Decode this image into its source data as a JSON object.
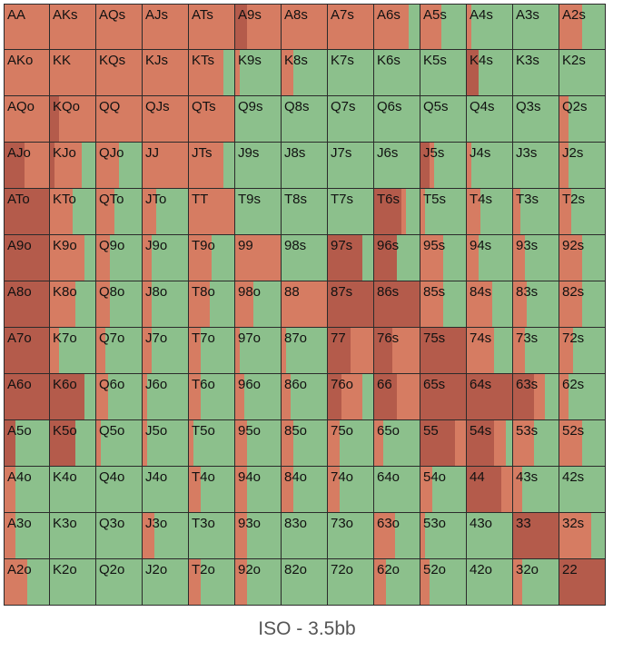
{
  "chart_data": {
    "type": "heatmap",
    "title": "ISO - 3.5bb",
    "colors": {
      "raise": "#d67c62",
      "allin": "#b45b4b",
      "fold": "#8cc08c",
      "grid_line": "#2b2b2b",
      "caption": "#555555"
    },
    "hands": [
      [
        "AA",
        "AKs",
        "AQs",
        "AJs",
        "ATs",
        "A9s",
        "A8s",
        "A7s",
        "A6s",
        "A5s",
        "A4s",
        "A3s",
        "A2s"
      ],
      [
        "AKo",
        "KK",
        "KQs",
        "KJs",
        "KTs",
        "K9s",
        "K8s",
        "K7s",
        "K6s",
        "K5s",
        "K4s",
        "K3s",
        "K2s"
      ],
      [
        "AQo",
        "KQo",
        "QQ",
        "QJs",
        "QTs",
        "Q9s",
        "Q8s",
        "Q7s",
        "Q6s",
        "Q5s",
        "Q4s",
        "Q3s",
        "Q2s"
      ],
      [
        "AJo",
        "KJo",
        "QJo",
        "JJ",
        "JTs",
        "J9s",
        "J8s",
        "J7s",
        "J6s",
        "J5s",
        "J4s",
        "J3s",
        "J2s"
      ],
      [
        "ATo",
        "KTo",
        "QTo",
        "JTo",
        "TT",
        "T9s",
        "T8s",
        "T7s",
        "T6s",
        "T5s",
        "T4s",
        "T3s",
        "T2s"
      ],
      [
        "A9o",
        "K9o",
        "Q9o",
        "J9o",
        "T9o",
        "99",
        "98s",
        "97s",
        "96s",
        "95s",
        "94s",
        "93s",
        "92s"
      ],
      [
        "A8o",
        "K8o",
        "Q8o",
        "J8o",
        "T8o",
        "98o",
        "88",
        "87s",
        "86s",
        "85s",
        "84s",
        "83s",
        "82s"
      ],
      [
        "A7o",
        "K7o",
        "Q7o",
        "J7o",
        "T7o",
        "97o",
        "87o",
        "77",
        "76s",
        "75s",
        "74s",
        "73s",
        "72s"
      ],
      [
        "A6o",
        "K6o",
        "Q6o",
        "J6o",
        "T6o",
        "96o",
        "86o",
        "76o",
        "66",
        "65s",
        "64s",
        "63s",
        "62s"
      ],
      [
        "A5o",
        "K5o",
        "Q5o",
        "J5o",
        "T5o",
        "95o",
        "85o",
        "75o",
        "65o",
        "55",
        "54s",
        "53s",
        "52s"
      ],
      [
        "A4o",
        "K4o",
        "Q4o",
        "J4o",
        "T4o",
        "94o",
        "84o",
        "74o",
        "64o",
        "54o",
        "44",
        "43s",
        "42s"
      ],
      [
        "A3o",
        "K3o",
        "Q3o",
        "J3o",
        "T3o",
        "93o",
        "83o",
        "73o",
        "63o",
        "53o",
        "43o",
        "33",
        "32s"
      ],
      [
        "A2o",
        "K2o",
        "Q2o",
        "J2o",
        "T2o",
        "92o",
        "82o",
        "72o",
        "62o",
        "52o",
        "42o",
        "32o",
        "22"
      ]
    ],
    "frequencies": [
      [
        [
          0,
          1
        ],
        [
          0,
          1
        ],
        [
          0,
          1
        ],
        [
          0,
          1
        ],
        [
          0,
          1
        ],
        [
          0.25,
          0.75
        ],
        [
          0,
          1
        ],
        [
          0,
          1
        ],
        [
          0,
          0.75
        ],
        [
          0,
          0.45
        ],
        [
          0,
          0.1
        ],
        [
          0,
          0
        ],
        [
          0,
          0.5
        ]
      ],
      [
        [
          0,
          1
        ],
        [
          0,
          1
        ],
        [
          0,
          1
        ],
        [
          0,
          1
        ],
        [
          0,
          0.75
        ],
        [
          0,
          0.1
        ],
        [
          0,
          0.25
        ],
        [
          0,
          0
        ],
        [
          0,
          0
        ],
        [
          0,
          0
        ],
        [
          0.25,
          0
        ],
        [
          0,
          0
        ],
        [
          0,
          0
        ]
      ],
      [
        [
          0,
          1
        ],
        [
          0.2,
          0.8
        ],
        [
          0,
          1
        ],
        [
          0,
          1
        ],
        [
          0,
          1
        ],
        [
          0,
          0
        ],
        [
          0,
          0
        ],
        [
          0,
          0
        ],
        [
          0,
          0
        ],
        [
          0,
          0
        ],
        [
          0,
          0
        ],
        [
          0,
          0
        ],
        [
          0,
          0.2
        ]
      ],
      [
        [
          0.45,
          0.55
        ],
        [
          0.1,
          0.6
        ],
        [
          0,
          0.5
        ],
        [
          0,
          1
        ],
        [
          0,
          0.75
        ],
        [
          0,
          0
        ],
        [
          0,
          0
        ],
        [
          0,
          0
        ],
        [
          0,
          0
        ],
        [
          0.2,
          0.1
        ],
        [
          0,
          0.1
        ],
        [
          0,
          0
        ],
        [
          0,
          0.2
        ]
      ],
      [
        [
          1,
          0
        ],
        [
          0,
          0.5
        ],
        [
          0,
          0.4
        ],
        [
          0,
          0.3
        ],
        [
          0,
          1
        ],
        [
          0,
          0
        ],
        [
          0,
          0
        ],
        [
          0,
          0
        ],
        [
          0.6,
          0.1
        ],
        [
          0,
          0.1
        ],
        [
          0,
          0.3
        ],
        [
          0,
          0.15
        ],
        [
          0,
          0.25
        ]
      ],
      [
        [
          1,
          0
        ],
        [
          0,
          0.75
        ],
        [
          0,
          0.3
        ],
        [
          0,
          0.2
        ],
        [
          0,
          0.5
        ],
        [
          0,
          1
        ],
        [
          0,
          0
        ],
        [
          0.75,
          0
        ],
        [
          0.5,
          0
        ],
        [
          0,
          0.5
        ],
        [
          0,
          0.25
        ],
        [
          0,
          0.25
        ],
        [
          0,
          0.5
        ]
      ],
      [
        [
          1,
          0
        ],
        [
          0,
          0.55
        ],
        [
          0,
          0.3
        ],
        [
          0,
          0.2
        ],
        [
          0,
          0.45
        ],
        [
          0,
          0.4
        ],
        [
          0,
          1
        ],
        [
          1,
          0
        ],
        [
          1,
          0
        ],
        [
          0,
          0.5
        ],
        [
          0,
          0.55
        ],
        [
          0,
          0.3
        ],
        [
          0,
          0.5
        ]
      ],
      [
        [
          1,
          0
        ],
        [
          0,
          0.2
        ],
        [
          0,
          0.2
        ],
        [
          0,
          0.2
        ],
        [
          0,
          0.25
        ],
        [
          0,
          0.1
        ],
        [
          0,
          0.1
        ],
        [
          0.5,
          0.5
        ],
        [
          0.4,
          0.6
        ],
        [
          1,
          0
        ],
        [
          0,
          0.6
        ],
        [
          0,
          0.25
        ],
        [
          0,
          0.3
        ]
      ],
      [
        [
          1,
          0
        ],
        [
          0.75,
          0
        ],
        [
          0,
          0.25
        ],
        [
          0,
          0.1
        ],
        [
          0,
          0.25
        ],
        [
          0,
          0.2
        ],
        [
          0,
          0.2
        ],
        [
          0.3,
          0.45
        ],
        [
          0.5,
          0.5
        ],
        [
          1,
          0
        ],
        [
          1,
          0
        ],
        [
          0.45,
          0.25
        ],
        [
          0,
          0.2
        ]
      ],
      [
        [
          0.25,
          0
        ],
        [
          0.55,
          0
        ],
        [
          0,
          0.1
        ],
        [
          0,
          0.1
        ],
        [
          0,
          0.1
        ],
        [
          0,
          0.25
        ],
        [
          0,
          0.25
        ],
        [
          0,
          0.25
        ],
        [
          0,
          0.2
        ],
        [
          0.75,
          0.25
        ],
        [
          0.6,
          0.25
        ],
        [
          0,
          0.45
        ],
        [
          0,
          0.5
        ]
      ],
      [
        [
          0,
          0.25
        ],
        [
          0,
          0
        ],
        [
          0,
          0
        ],
        [
          0,
          0
        ],
        [
          0,
          0.25
        ],
        [
          0,
          0.25
        ],
        [
          0,
          0.25
        ],
        [
          0,
          0.25
        ],
        [
          0,
          0
        ],
        [
          0,
          0.25
        ],
        [
          0.75,
          0.25
        ],
        [
          0,
          0.2
        ],
        [
          0,
          0
        ]
      ],
      [
        [
          0,
          0.25
        ],
        [
          0,
          0
        ],
        [
          0,
          0
        ],
        [
          0,
          0.25
        ],
        [
          0,
          0
        ],
        [
          0,
          0.25
        ],
        [
          0,
          0
        ],
        [
          0,
          0
        ],
        [
          0,
          0.45
        ],
        [
          0,
          0.1
        ],
        [
          0,
          0
        ],
        [
          1,
          0
        ],
        [
          0,
          0.7
        ]
      ],
      [
        [
          0,
          0.5
        ],
        [
          0,
          0
        ],
        [
          0,
          0
        ],
        [
          0,
          0
        ],
        [
          0,
          0.25
        ],
        [
          0,
          0.25
        ],
        [
          0,
          0
        ],
        [
          0,
          0
        ],
        [
          0,
          0.25
        ],
        [
          0,
          0.2
        ],
        [
          0,
          0
        ],
        [
          0,
          0.2
        ],
        [
          1,
          0
        ]
      ]
    ]
  }
}
